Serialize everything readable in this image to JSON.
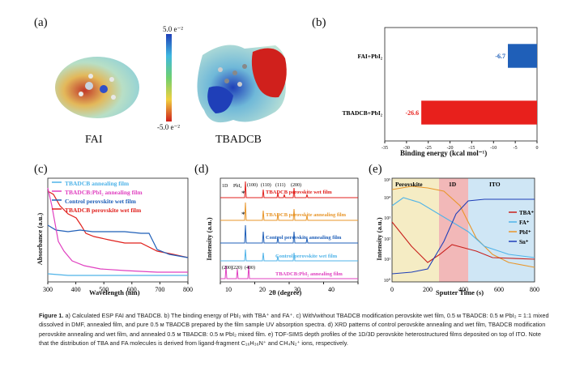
{
  "panels": {
    "a": {
      "label": "(a)",
      "molecule1": "FAI",
      "molecule2": "TBADCB",
      "scale_max": "5.0 e⁻²",
      "scale_min": "-5.0 e⁻²"
    },
    "b": {
      "label": "(b)",
      "xlabel": "Binding energy (kcal mol⁻¹)",
      "chart_data": {
        "type": "bar",
        "orientation": "horizontal",
        "categories": [
          "FAI+PbI₂",
          "TBADCB+PbI₂"
        ],
        "values": [
          -6.7,
          -26.6
        ],
        "value_labels": [
          "-6.7",
          "-26.6"
        ],
        "colors": [
          "#1f5fb8",
          "#e8201c"
        ],
        "xticks": [
          "-35",
          "-30",
          "-25",
          "-20",
          "-15",
          "-10",
          "-5",
          "0"
        ],
        "xlim": [
          -35,
          0
        ]
      }
    },
    "c": {
      "label": "(c)",
      "xlabel": "Wavelength (nm)",
      "ylabel": "Absorbance (a.u.)",
      "xticks": [
        "300",
        "400",
        "500",
        "600",
        "700",
        "800"
      ],
      "legend": [
        {
          "name": "TBADCB annealing film",
          "color": "#4fb3e8"
        },
        {
          "name": "TBADCB:PbI₂ annealing film",
          "color": "#e040c0"
        },
        {
          "name": "Control perovskite wet film",
          "color": "#1f5fb8"
        },
        {
          "name": "TBADCB perovskite wet film",
          "color": "#e0201c"
        }
      ]
    },
    "d": {
      "label": "(d)",
      "xlabel": "2θ (degree)",
      "ylabel": "Intensity (a.u.)",
      "xticks": [
        "10",
        "20",
        "30",
        "40"
      ],
      "peak_labels": [
        "1D",
        "PbI₂",
        "(100)",
        "(110)",
        "(111)",
        "(200)",
        "(200)",
        "(220)",
        "(400)",
        "*",
        "*"
      ],
      "traces": [
        {
          "name": "TBADCB perovskite wet film",
          "color": "#e0201c"
        },
        {
          "name": "TBADCB perovskite annealing film",
          "color": "#e8962a"
        },
        {
          "name": "Control perovskite annealing film",
          "color": "#1f5fb8"
        },
        {
          "name": "Control perovskite wet film",
          "color": "#4fb3e8"
        },
        {
          "name": "TBADCB:PbI₂ annealing film",
          "color": "#e040c0"
        }
      ]
    },
    "e": {
      "label": "(e)",
      "xlabel": "Sputter Time (s)",
      "ylabel": "Intensity (a.u.)",
      "xticks": [
        "0",
        "200",
        "400",
        "600",
        "800"
      ],
      "yticks": [
        "10⁰",
        "10¹",
        "10²",
        "10³",
        "10⁴",
        "10⁵"
      ],
      "regions": [
        "Perovskite",
        "1D",
        "ITO"
      ],
      "legend": [
        {
          "name": "TBA⁺",
          "color": "#c8201c"
        },
        {
          "name": "FA⁺",
          "color": "#4fb3e8"
        },
        {
          "name": "PbI⁺",
          "color": "#e8962a"
        },
        {
          "name": "Sn⁺",
          "color": "#1f3fb8"
        }
      ]
    }
  },
  "caption": {
    "lead": "Figure 1.",
    "text": " a) Calculated ESP FAI and TBADCB. b) The binding energy of PbI₂ with TBA⁺ and FA⁺. c) With/without TBADCB modification perovskite wet film, 0.5 ᴍ TBADCB: 0.5 ᴍ PbI₂ = 1:1 mixed dissolved in DMF, annealed film, and pure 0.5 ᴍ TBADCB prepared by the film sample UV absorption spectra. d) XRD patterns of control perovskite annealing and wet film, TBADCB modification perovskite annealing and wet film, and annealed 0.5 ᴍ TBADCB: 0.5 ᴍ PbI₂ mixed film. e) TOF-SIMS depth profiles of the 1D/3D perovskite heterostructured films deposited on top of ITO. Note that the distribution of TBA and FA molecules is derived from ligand-fragment C₁₆H₃₆N⁺ and CH₄N₂⁺ ions, respectively."
  }
}
